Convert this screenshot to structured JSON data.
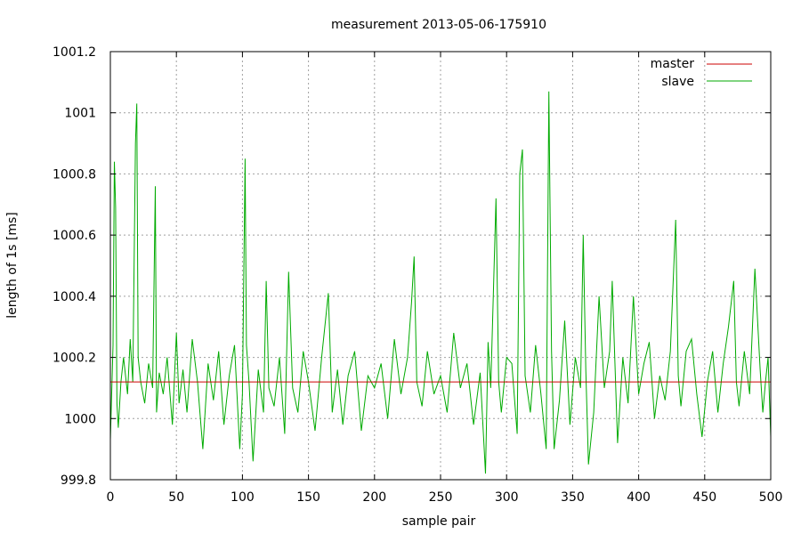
{
  "chart_data": {
    "type": "line",
    "title": "measurement 2013-05-06-175910",
    "xlabel": "sample pair",
    "ylabel": "length of 1s [ms]",
    "xlim": [
      0,
      500
    ],
    "ylim": [
      999.8,
      1001.2
    ],
    "xticks": [
      0,
      50,
      100,
      150,
      200,
      250,
      300,
      350,
      400,
      450,
      500
    ],
    "yticks": [
      999.8,
      1000,
      1000.2,
      1000.4,
      1000.6,
      1000.8,
      1001,
      1001.2
    ],
    "ytick_labels": [
      "999.8",
      "1000",
      "1000.2",
      "1000.4",
      "1000.6",
      "1000.8",
      "1001",
      "1001.2"
    ],
    "grid": true,
    "legend_position": "top-right",
    "series": [
      {
        "name": "master",
        "color": "#cc0000",
        "x": [
          0,
          500
        ],
        "y": [
          1000.12,
          1000.12
        ]
      },
      {
        "name": "slave",
        "color": "#00aa00",
        "x": [
          0,
          2,
          3,
          4,
          5,
          6,
          8,
          10,
          13,
          15,
          17,
          19,
          20,
          21,
          23,
          26,
          29,
          32,
          34,
          35,
          37,
          40,
          43,
          47,
          50,
          52,
          55,
          58,
          62,
          66,
          70,
          74,
          78,
          82,
          86,
          90,
          94,
          98,
          100,
          102,
          103,
          105,
          108,
          112,
          116,
          118,
          120,
          124,
          128,
          132,
          135,
          138,
          142,
          146,
          150,
          155,
          160,
          165,
          168,
          172,
          176,
          180,
          185,
          190,
          195,
          200,
          205,
          210,
          215,
          220,
          225,
          228,
          230,
          232,
          236,
          240,
          245,
          250,
          255,
          260,
          265,
          270,
          275,
          280,
          284,
          286,
          288,
          292,
          294,
          296,
          300,
          304,
          308,
          310,
          312,
          314,
          318,
          322,
          326,
          330,
          332,
          334,
          336,
          340,
          344,
          348,
          352,
          356,
          358,
          360,
          362,
          366,
          370,
          374,
          378,
          380,
          384,
          388,
          392,
          396,
          400,
          404,
          408,
          412,
          416,
          420,
          424,
          428,
          430,
          432,
          436,
          440,
          444,
          448,
          452,
          456,
          460,
          464,
          468,
          472,
          474,
          476,
          480,
          484,
          488,
          492,
          494,
          496,
          498,
          500
        ],
        "y": [
          999.93,
          1000.24,
          1000.84,
          1000.69,
          1000.05,
          999.97,
          1000.12,
          1000.2,
          1000.08,
          1000.26,
          1000.12,
          1000.9,
          1001.03,
          1000.2,
          1000.12,
          1000.05,
          1000.18,
          1000.1,
          1000.76,
          1000.02,
          1000.15,
          1000.08,
          1000.2,
          999.98,
          1000.28,
          1000.05,
          1000.16,
          1000.02,
          1000.26,
          1000.12,
          999.9,
          1000.18,
          1000.06,
          1000.22,
          999.98,
          1000.14,
          1000.24,
          999.9,
          1000.08,
          1000.85,
          1000.24,
          1000.12,
          999.86,
          1000.16,
          1000.02,
          1000.45,
          1000.1,
          1000.04,
          1000.2,
          999.95,
          1000.48,
          1000.1,
          1000.02,
          1000.22,
          1000.12,
          999.96,
          1000.2,
          1000.41,
          1000.02,
          1000.16,
          999.98,
          1000.14,
          1000.22,
          999.96,
          1000.14,
          1000.1,
          1000.18,
          1000.0,
          1000.26,
          1000.08,
          1000.2,
          1000.38,
          1000.53,
          1000.12,
          1000.04,
          1000.22,
          1000.08,
          1000.14,
          1000.02,
          1000.28,
          1000.1,
          1000.18,
          999.98,
          1000.15,
          999.82,
          1000.25,
          1000.1,
          1000.72,
          1000.12,
          1000.02,
          1000.2,
          1000.18,
          999.95,
          1000.8,
          1000.88,
          1000.14,
          1000.02,
          1000.24,
          1000.08,
          999.9,
          1001.07,
          1000.22,
          999.9,
          1000.06,
          1000.32,
          999.98,
          1000.2,
          1000.1,
          1000.6,
          1000.16,
          999.85,
          1000.02,
          1000.4,
          1000.1,
          1000.22,
          1000.45,
          999.92,
          1000.2,
          1000.05,
          1000.4,
          1000.08,
          1000.18,
          1000.25,
          1000.0,
          1000.14,
          1000.06,
          1000.22,
          1000.65,
          1000.14,
          1000.04,
          1000.22,
          1000.26,
          1000.08,
          999.94,
          1000.12,
          1000.22,
          1000.02,
          1000.18,
          1000.3,
          1000.45,
          1000.12,
          1000.04,
          1000.22,
          1000.08,
          1000.49,
          1000.16,
          1000.02,
          1000.12,
          1000.2,
          999.94
        ]
      }
    ]
  }
}
